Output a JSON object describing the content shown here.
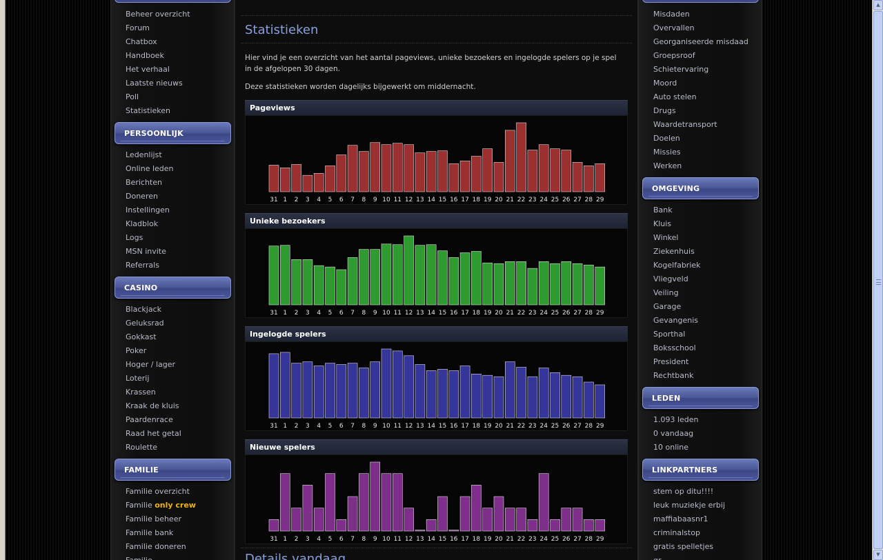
{
  "left_menu": {
    "top_items": [
      "Beheer overzicht",
      "Forum",
      "Chatbox",
      "Handboek",
      "Het verhaal",
      "Laatste nieuws",
      "Poll",
      "Statistieken"
    ],
    "sections": [
      {
        "title": "PERSOONLIJK",
        "items": [
          "Ledenlijst",
          "Online leden",
          "Berichten",
          "Doneren",
          "Instellingen",
          "Kladblok",
          "Logs",
          "MSN invite",
          "Referrals"
        ]
      },
      {
        "title": "CASINO",
        "items": [
          "Blackjack",
          "Geluksrad",
          "Gokkast",
          "Poker",
          "Hoger / lager",
          "Loterij",
          "Krassen",
          "Kraak de kluis",
          "Paardenrace",
          "Raad het getal",
          "Roulette"
        ]
      },
      {
        "title": "FAMILIE",
        "items": [
          "Familie overzicht",
          "Familie beheer",
          "Familie bank",
          "Familie doneren",
          "Familie"
        ]
      }
    ],
    "familie_name_prefix": "Familie",
    "familie_name_highlight": "only crew"
  },
  "right_menu": {
    "top_items": [
      "Misdaden",
      "Overvallen",
      "Georganiseerde misdaad",
      "Groepsroof",
      "Schietervaring",
      "Moord",
      "Auto stelen",
      "Drugs",
      "Waardetransport",
      "Doelen",
      "Missies",
      "Werken"
    ],
    "sections": [
      {
        "title": "OMGEVING",
        "items": [
          "Bank",
          "Kluis",
          "Winkel",
          "Ziekenhuis",
          "Kogelfabriek",
          "Vliegveld",
          "Veiling",
          "Garage",
          "Gevangenis",
          "Sporthal",
          "Boksschool",
          "President",
          "Rechtbank"
        ]
      },
      {
        "title": "LEDEN",
        "items": [
          "1.093 leden",
          "0 vandaag",
          "10 online"
        ]
      },
      {
        "title": "LINKPARTNERS",
        "items": [
          "stem op ditu!!!!",
          "leuk muziekje erbij",
          "maffiabaasnr1",
          "criminalstop",
          "gratis spelletjes",
          "gr"
        ]
      }
    ]
  },
  "main": {
    "title": "Statistieken",
    "intro_1": "Hier vind je een overzicht van het aantal pageviews, unieke bezoekers en ingelogde spelers op je spel in de afgelopen 30 dagen.",
    "intro_2": "Deze statistieken worden dagelijks bijgewerkt om middernacht.",
    "next_title": "Details vandaag"
  },
  "colors": {
    "pageviews": "#9b3030",
    "bezoekers": "#2f9a2f",
    "ingelogd": "#35359a",
    "nieuw": "#7e2f8a"
  },
  "chart_data": [
    {
      "type": "bar",
      "title": "Pageviews",
      "categories": [
        "31",
        "1",
        "2",
        "3",
        "4",
        "5",
        "6",
        "7",
        "8",
        "9",
        "10",
        "11",
        "12",
        "13",
        "14",
        "15",
        "16",
        "17",
        "18",
        "19",
        "20",
        "21",
        "22",
        "23",
        "24",
        "25",
        "26",
        "27",
        "28",
        "29"
      ],
      "values": [
        39,
        35,
        40,
        24,
        27,
        38,
        54,
        68,
        59,
        72,
        69,
        71,
        69,
        57,
        59,
        60,
        41,
        45,
        52,
        63,
        43,
        90,
        101,
        61,
        69,
        63,
        61,
        43,
        38,
        41
      ]
    },
    {
      "type": "bar",
      "title": "Unieke bezoekers",
      "categories": [
        "31",
        "1",
        "2",
        "3",
        "4",
        "5",
        "6",
        "7",
        "8",
        "9",
        "10",
        "11",
        "12",
        "13",
        "14",
        "15",
        "16",
        "17",
        "18",
        "19",
        "20",
        "21",
        "22",
        "23",
        "24",
        "25",
        "26",
        "27",
        "28",
        "29"
      ],
      "values": [
        87,
        88,
        67,
        67,
        58,
        56,
        52,
        70,
        82,
        82,
        90,
        89,
        102,
        88,
        89,
        80,
        70,
        77,
        79,
        62,
        61,
        64,
        64,
        54,
        64,
        61,
        64,
        61,
        59,
        56
      ]
    },
    {
      "type": "bar",
      "title": "Ingelogde spelers",
      "categories": [
        "31",
        "1",
        "2",
        "3",
        "4",
        "5",
        "6",
        "7",
        "8",
        "9",
        "10",
        "11",
        "12",
        "13",
        "14",
        "15",
        "16",
        "17",
        "18",
        "19",
        "20",
        "21",
        "22",
        "23",
        "24",
        "25",
        "26",
        "27",
        "28",
        "29"
      ],
      "values": [
        95,
        97,
        81,
        83,
        77,
        81,
        79,
        81,
        74,
        83,
        102,
        99,
        92,
        79,
        70,
        72,
        70,
        77,
        65,
        63,
        61,
        83,
        75,
        61,
        74,
        67,
        63,
        61,
        53,
        49
      ]
    },
    {
      "type": "bar",
      "title": "Nieuwe spelers",
      "categories": [
        "31",
        "1",
        "2",
        "3",
        "4",
        "5",
        "6",
        "7",
        "8",
        "9",
        "10",
        "11",
        "12",
        "13",
        "14",
        "15",
        "16",
        "17",
        "18",
        "19",
        "20",
        "21",
        "22",
        "23",
        "24",
        "25",
        "26",
        "27",
        "28",
        "29"
      ],
      "values": [
        1,
        5,
        2,
        4,
        2,
        5,
        1,
        3,
        5,
        6,
        5,
        5,
        2,
        0,
        1,
        3,
        0,
        3,
        4,
        2,
        3,
        2,
        2,
        1,
        5,
        1,
        2,
        2,
        1,
        1
      ],
      "ylim": [
        0,
        6
      ]
    }
  ]
}
